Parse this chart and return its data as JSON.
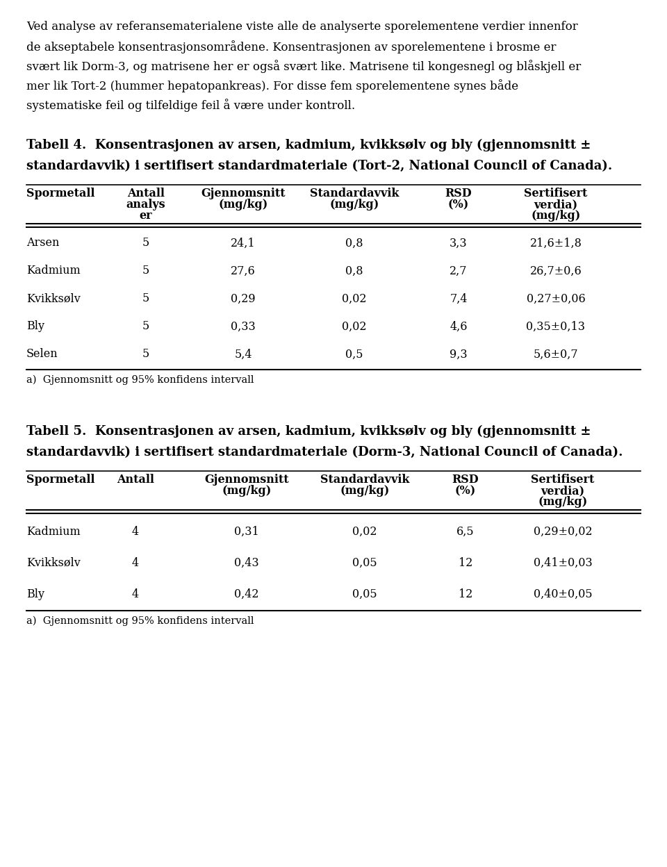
{
  "intro_lines": [
    "Ved analyse av referansematerialene viste alle de analyserte sporelementene verdier innenfor",
    "de akseptabele konsentrasjonsområdene. Konsentrasjonen av sporelementene i brosme er",
    "svært lik Dorm-3, og matrisene her er også svært like. Matrisene til kongesnegl og blåskjell er",
    "mer lik Tort-2 (hummer hepatopankreas). For disse fem sporelementene synes både",
    "systematiske feil og tilfeldige feil å være under kontroll."
  ],
  "table4_title_lines": [
    "Tabell 4.  Konsentrasjonen av arsen, kadmium, kvikksølv og bly (gjennomsnitt ±",
    "standardavvik) i sertifisert standardmateriale (Tort-2, National Council of Canada)."
  ],
  "table4_col_headers": [
    [
      "Spormetall",
      "",
      ""
    ],
    [
      "Antall",
      "analys",
      "er"
    ],
    [
      "Gjennomsnitt",
      "(mg/kg)",
      ""
    ],
    [
      "Standardavvik",
      "(mg/kg)",
      ""
    ],
    [
      "RSD",
      "(%)",
      ""
    ],
    [
      "Sertifisert",
      "verdia)",
      "(mg/kg)"
    ]
  ],
  "table4_rows": [
    [
      "Arsen",
      "5",
      "24,1",
      "0,8",
      "3,3",
      "21,6±1,8"
    ],
    [
      "Kadmium",
      "5",
      "27,6",
      "0,8",
      "2,7",
      "26,7±0,6"
    ],
    [
      "Kvikksølv",
      "5",
      "0,29",
      "0,02",
      "7,4",
      "0,27±0,06"
    ],
    [
      "Bly",
      "5",
      "0,33",
      "0,02",
      "4,6",
      "0,35±0,13"
    ],
    [
      "Selen",
      "5",
      "5,4",
      "0,5",
      "9,3",
      "5,6±0,7"
    ]
  ],
  "table4_footnote": "a)  Gjennomsnitt og 95% konfidens intervall",
  "table5_title_lines": [
    "Tabell 5.  Konsentrasjonen av arsen, kadmium, kvikksølv og bly (gjennomsnitt ±",
    "standardavvik) i sertifisert standardmateriale (Dorm-3, National Council of Canada)."
  ],
  "table5_col_headers": [
    [
      "Spormetall",
      "",
      "",
      ""
    ],
    [
      "Antall",
      "",
      "",
      ""
    ],
    [
      "Gjennomsnitt",
      "(mg/kg)",
      "",
      ""
    ],
    [
      "Standardavvik",
      "(mg/kg)",
      "",
      ""
    ],
    [
      "RSD",
      "(%)",
      "",
      ""
    ],
    [
      "Sertifisert",
      "verdia)",
      "(mg/kg)",
      ""
    ]
  ],
  "table5_rows": [
    [
      "Kadmium",
      "4",
      "0,31",
      "0,02",
      "6,5",
      "0,29±0,02"
    ],
    [
      "Kvikksølv",
      "4",
      "0,43",
      "0,05",
      "12",
      "0,41±0,03"
    ],
    [
      "Bly",
      "4",
      "0,42",
      "0,05",
      "12",
      "0,40±0,05"
    ]
  ],
  "table5_footnote": "a)  Gjennomsnitt og 95% konfidens intervall",
  "font_family": "DejaVu Serif",
  "text_color": "#000000",
  "bg_color": "#ffffff"
}
